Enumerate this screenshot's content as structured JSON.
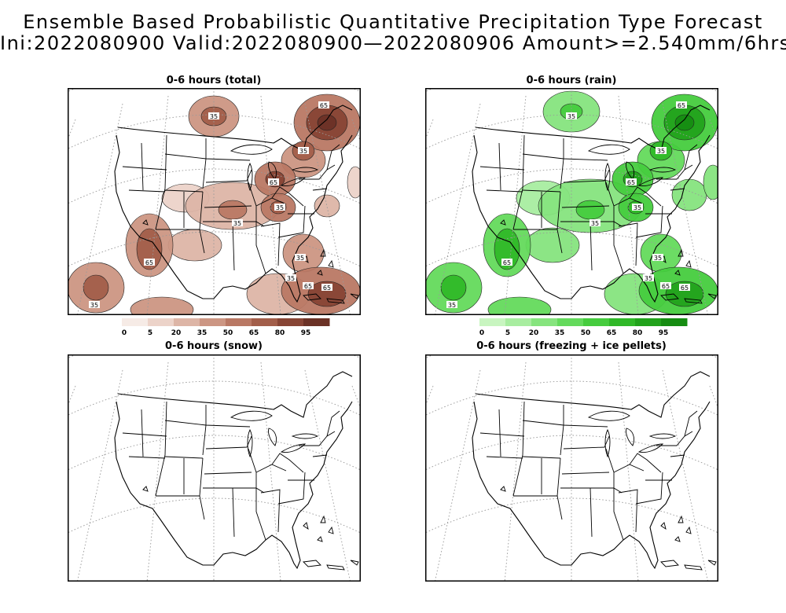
{
  "title": {
    "line1": "Ensemble Based Probabilistic Quantitative Precipitation Type Forecast",
    "line2": "Ini:2022080900 Valid:2022080900—2022080906 Amount>=2.540mm/6hrs"
  },
  "panels": [
    {
      "id": "total",
      "title": "0-6 hours (total)",
      "shaded": true,
      "colorbar": {
        "labels": [
          "0",
          "5",
          "20",
          "35",
          "50",
          "65",
          "80",
          "95"
        ],
        "colors": [
          "#f6ebe6",
          "#ecd3c9",
          "#ddb5a6",
          "#cc9683",
          "#b97864",
          "#a25e4a",
          "#874535",
          "#6b3226"
        ]
      },
      "contour_labels": [
        "35",
        "65"
      ]
    },
    {
      "id": "rain",
      "title": "0-6 hours (rain)",
      "shaded": true,
      "colorbar": {
        "labels": [
          "0",
          "5",
          "20",
          "35",
          "50",
          "65",
          "80",
          "95"
        ],
        "colors": [
          "#c8f5c0",
          "#a8eda0",
          "#86e47e",
          "#64da5c",
          "#46cc3e",
          "#30b828",
          "#22a21c",
          "#168c12"
        ]
      },
      "contour_labels": [
        "35",
        "65"
      ]
    },
    {
      "id": "snow",
      "title": "0-6 hours (snow)",
      "shaded": false
    },
    {
      "id": "freezing",
      "title": "0-6 hours (freezing + ice pellets)",
      "shaded": false
    }
  ]
}
